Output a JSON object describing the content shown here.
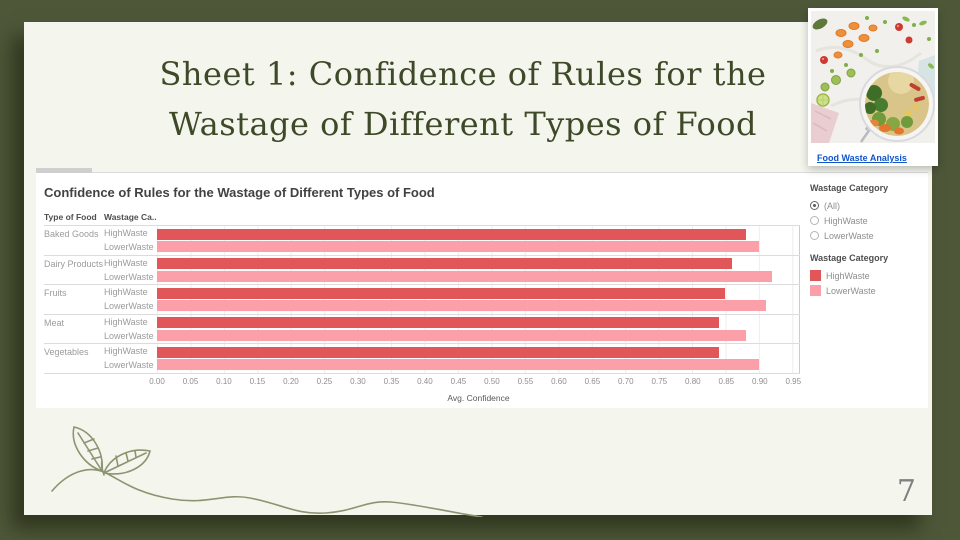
{
  "slide": {
    "title_line1": "Sheet 1: Confidence of Rules for the",
    "title_line2": "Wastage of Different Types of Food",
    "page_number": "7"
  },
  "image_card": {
    "link_label": "Food Waste Analysis"
  },
  "chart": {
    "col_header_type": "Type of Food",
    "col_header_category": "Wastage Ca.."
  },
  "filter_panel": {
    "title": "Wastage Category",
    "options": [
      {
        "label": "(All)",
        "selected": true
      },
      {
        "label": "HighWaste",
        "selected": false
      },
      {
        "label": "LowerWaste",
        "selected": false
      }
    ]
  },
  "legend": {
    "title": "Wastage Category",
    "items": [
      {
        "label": "HighWaste",
        "color": "#e15759"
      },
      {
        "label": "LowerWaste",
        "color": "#fb9fa8"
      }
    ]
  },
  "chart_data": {
    "type": "bar",
    "orientation": "horizontal",
    "title": "Confidence of Rules for the Wastage of Different Types of Food",
    "categories": [
      "Baked Goods",
      "Dairy Products",
      "Fruits",
      "Meat",
      "Vegetables"
    ],
    "series": [
      {
        "name": "HighWaste",
        "color": "#e15759",
        "values": [
          0.88,
          0.86,
          0.85,
          0.84,
          0.84
        ]
      },
      {
        "name": "LowerWaste",
        "color": "#fb9fa8",
        "values": [
          0.9,
          0.92,
          0.91,
          0.88,
          0.9
        ]
      }
    ],
    "xlabel": "Avg. Confidence",
    "ylabel": "Type of Food / Wastage Category",
    "xlim": [
      0.0,
      0.96
    ],
    "x_ticks": [
      "0.00",
      "0.05",
      "0.10",
      "0.15",
      "0.20",
      "0.25",
      "0.30",
      "0.35",
      "0.40",
      "0.45",
      "0.50",
      "0.55",
      "0.60",
      "0.65",
      "0.70",
      "0.75",
      "0.80",
      "0.85",
      "0.90",
      "0.95"
    ],
    "grid": true,
    "legend_position": "right"
  }
}
